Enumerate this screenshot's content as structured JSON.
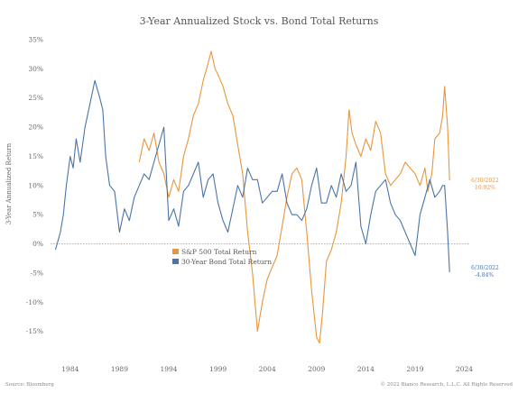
{
  "chart_data": {
    "type": "line",
    "title": "3-Year Annualized Stock vs. Bond Total Returns",
    "ylabel": "3-Year Annualized Return",
    "ylim": [
      -20,
      35
    ],
    "xlim": [
      1982.0,
      2024.5
    ],
    "y_ticks": [
      {
        "value": 35,
        "label": "35%"
      },
      {
        "value": 30,
        "label": "30%"
      },
      {
        "value": 25,
        "label": "25%"
      },
      {
        "value": 20,
        "label": "20%"
      },
      {
        "value": 15,
        "label": "15%"
      },
      {
        "value": 10,
        "label": "10%"
      },
      {
        "value": 5,
        "label": "5%"
      },
      {
        "value": 0,
        "label": "0%"
      },
      {
        "value": -5,
        "label": "-5%"
      },
      {
        "value": -10,
        "label": "-10%"
      },
      {
        "value": -15,
        "label": "-15%"
      }
    ],
    "x_ticks": [
      {
        "value": 1984,
        "label": "1984"
      },
      {
        "value": 1989,
        "label": "1989"
      },
      {
        "value": 1994,
        "label": "1994"
      },
      {
        "value": 1999,
        "label": "1999"
      },
      {
        "value": 2004,
        "label": "2004"
      },
      {
        "value": 2009,
        "label": "2009"
      },
      {
        "value": 2014,
        "label": "2014"
      },
      {
        "value": 2019,
        "label": "2019"
      },
      {
        "value": 2024,
        "label": "2024"
      }
    ],
    "zero_line": "dotted",
    "grid": false,
    "legend_position": "center",
    "series": [
      {
        "name": "S&P 500 Total Return",
        "color": "#e8963c",
        "x": [
          1991.0,
          1991.5,
          1992.0,
          1992.5,
          1993.0,
          1993.5,
          1994.0,
          1994.5,
          1995.0,
          1995.5,
          1996.0,
          1996.5,
          1997.0,
          1997.5,
          1998.0,
          1998.3,
          1998.7,
          1999.0,
          1999.5,
          2000.0,
          2000.5,
          2001.0,
          2001.5,
          2002.0,
          2002.5,
          2002.8,
          2003.0,
          2003.5,
          2004.0,
          2004.5,
          2005.0,
          2005.5,
          2006.0,
          2006.5,
          2007.0,
          2007.5,
          2008.0,
          2008.5,
          2009.0,
          2009.3,
          2009.6,
          2010.0,
          2010.5,
          2011.0,
          2011.5,
          2012.0,
          2012.3,
          2012.6,
          2013.0,
          2013.5,
          2014.0,
          2014.5,
          2015.0,
          2015.5,
          2016.0,
          2016.5,
          2017.0,
          2017.5,
          2018.0,
          2018.5,
          2019.0,
          2019.5,
          2020.0,
          2020.3,
          2020.7,
          2021.0,
          2021.5,
          2021.8,
          2022.0,
          2022.3,
          2022.5
        ],
        "y": [
          14,
          18,
          16,
          19,
          14,
          12,
          8,
          11,
          9,
          15,
          18,
          22,
          24,
          28,
          31,
          33,
          30,
          29,
          27,
          24,
          22,
          17,
          12,
          2,
          -5,
          -11,
          -15,
          -10,
          -6,
          -4,
          -2,
          3,
          8,
          12,
          13,
          11,
          2,
          -8,
          -16,
          -17,
          -12,
          -3,
          -1,
          2,
          7,
          15,
          23,
          19,
          17,
          15,
          18,
          16,
          21,
          19,
          12,
          10,
          11,
          12,
          14,
          13,
          12,
          10,
          13,
          9,
          12,
          18,
          19,
          22,
          27,
          20,
          10.92
        ]
      },
      {
        "name": "30-Year Bond Total Return",
        "color": "#4a74a8",
        "x": [
          1982.5,
          1983.0,
          1983.3,
          1983.6,
          1984.0,
          1984.3,
          1984.6,
          1985.0,
          1985.5,
          1986.0,
          1986.5,
          1987.0,
          1987.3,
          1987.6,
          1988.0,
          1988.5,
          1989.0,
          1989.5,
          1990.0,
          1990.5,
          1991.0,
          1991.5,
          1992.0,
          1992.5,
          1993.0,
          1993.5,
          1994.0,
          1994.5,
          1995.0,
          1995.5,
          1996.0,
          1996.5,
          1997.0,
          1997.5,
          1998.0,
          1998.5,
          1999.0,
          1999.5,
          2000.0,
          2000.5,
          2001.0,
          2001.5,
          2002.0,
          2002.5,
          2003.0,
          2003.5,
          2004.0,
          2004.5,
          2005.0,
          2005.5,
          2006.0,
          2006.5,
          2007.0,
          2007.5,
          2008.0,
          2008.5,
          2009.0,
          2009.5,
          2010.0,
          2010.5,
          2011.0,
          2011.5,
          2012.0,
          2012.5,
          2013.0,
          2013.5,
          2014.0,
          2014.5,
          2015.0,
          2015.5,
          2016.0,
          2016.5,
          2017.0,
          2017.5,
          2018.0,
          2018.5,
          2019.0,
          2019.5,
          2020.0,
          2020.5,
          2021.0,
          2021.5,
          2021.8,
          2022.0,
          2022.3,
          2022.5
        ],
        "y": [
          -1,
          2,
          5,
          10,
          15,
          13,
          18,
          14,
          20,
          24,
          28,
          25,
          23,
          15,
          10,
          9,
          2,
          6,
          4,
          8,
          10,
          12,
          11,
          14,
          17,
          20,
          4,
          6,
          3,
          9,
          10,
          12,
          14,
          8,
          11,
          12,
          7,
          4,
          2,
          6,
          10,
          8,
          13,
          11,
          11,
          7,
          8,
          9,
          9,
          12,
          7,
          5,
          5,
          4,
          6,
          10,
          13,
          7,
          7,
          10,
          8,
          12,
          9,
          10,
          14,
          3,
          0,
          5,
          9,
          10,
          11,
          7,
          5,
          4,
          2,
          0,
          -2,
          5,
          8,
          11,
          8,
          9,
          10,
          10,
          2,
          -4.84
        ]
      }
    ],
    "annotations": [
      {
        "date": "6/30/2022",
        "value": "10.92%",
        "series": "S&P 500 Total Return"
      },
      {
        "date": "6/30/2022",
        "value": "-4.84%",
        "series": "30-Year Bond Total Return"
      }
    ],
    "source": "Source: Bloomberg",
    "copyright": "© 2022 Bianco Research, L.L.C. All Rights Reserved"
  }
}
